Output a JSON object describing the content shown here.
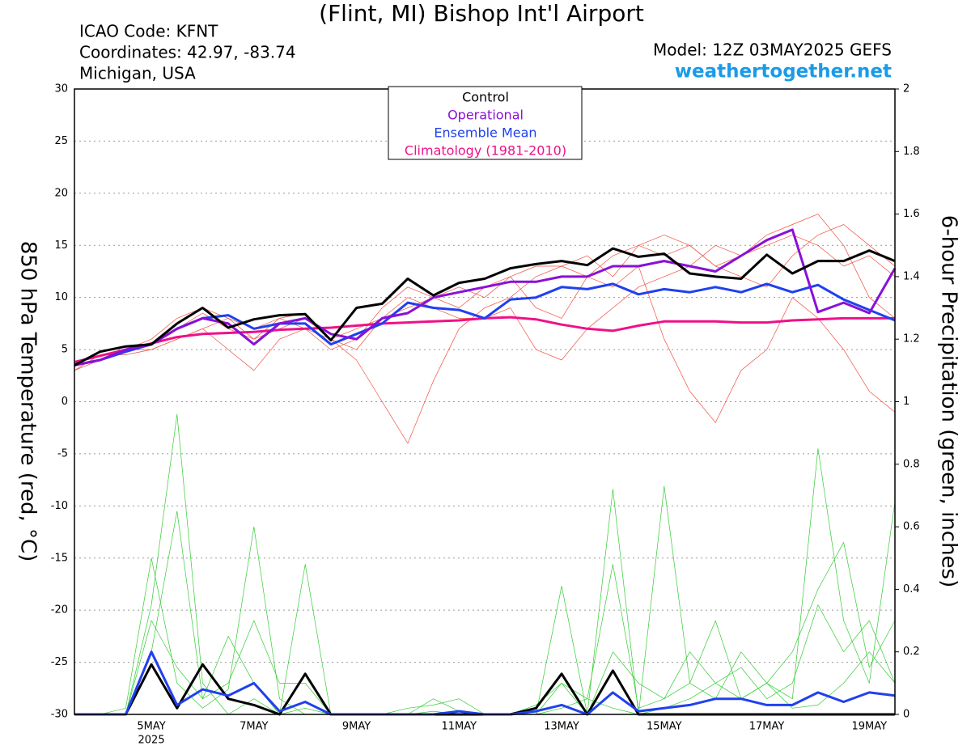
{
  "chart_data": {
    "type": "line",
    "title": "(Flint, MI) Bishop Int'l Airport",
    "info": [
      "ICAO Code: KFNT",
      "Coordinates: 42.97, -83.74",
      "Michigan, USA"
    ],
    "model": "Model: 12Z 03MAY2025 GEFS",
    "site": "weathertogether.net",
    "y_label": "850 hPa Temperature (red, °C)",
    "y2_label": "6-hour Precipitation (green, inches)",
    "categories": [
      null,
      null,
      null,
      "5MAY",
      null,
      null,
      null,
      "7MAY",
      null,
      null,
      null,
      "9MAY",
      null,
      null,
      null,
      "11MAY",
      null,
      null,
      null,
      "13MAY",
      null,
      null,
      null,
      "15MAY",
      null,
      null,
      null,
      "17MAY",
      null,
      null,
      null,
      "19MAY",
      null
    ],
    "year_label": "2025",
    "ylim": [
      -30,
      30
    ],
    "yticks": [
      -30,
      -25,
      -20,
      -15,
      -10,
      -5,
      0,
      5,
      10,
      15,
      20,
      25,
      30
    ],
    "y2lim": [
      0,
      2
    ],
    "y2ticks": [
      0,
      0.2,
      0.4,
      0.6,
      0.8,
      1,
      1.2,
      1.4,
      1.6,
      1.8,
      2
    ],
    "grid": true,
    "series": [
      {
        "color": "#33cc33",
        "axis": "y2",
        "values": [
          0,
          0,
          0,
          0.35,
          0.96,
          0.1,
          0,
          0.05,
          0,
          0.02,
          0,
          0,
          0,
          0,
          0,
          0,
          0,
          0,
          0,
          0.41,
          0,
          0.72,
          0,
          0.02,
          0.05,
          0.1,
          0.05,
          0.1,
          0.02,
          0.03,
          0.1,
          0.2,
          0.1
        ]
      },
      {
        "color": "#33cc33",
        "axis": "y2",
        "values": [
          0,
          0,
          0.02,
          0.5,
          0.1,
          0.02,
          0.08,
          0.6,
          0.05,
          0,
          0,
          0,
          0,
          0,
          0.01,
          0,
          0,
          0,
          0,
          0.02,
          0.05,
          0.02,
          0,
          0.73,
          0.1,
          0.05,
          0.2,
          0.1,
          0.05,
          0.85,
          0.3,
          0.1,
          0.68
        ]
      },
      {
        "color": "#33cc33",
        "axis": "y2",
        "values": [
          0,
          0,
          0,
          0.3,
          0.15,
          0.05,
          0.25,
          0.1,
          0,
          0.48,
          0,
          0,
          0,
          0,
          0.05,
          0.01,
          0,
          0,
          0.03,
          0.1,
          0.05,
          0.48,
          0.02,
          0.05,
          0.1,
          0.3,
          0.05,
          0.1,
          0.2,
          0.4,
          0.55,
          0.15,
          0.3
        ]
      },
      {
        "color": "#33cc33",
        "axis": "y2",
        "values": [
          0,
          0,
          0,
          0.2,
          0.65,
          0.05,
          0.1,
          0.3,
          0.1,
          0.1,
          0,
          0,
          0,
          0.02,
          0.03,
          0.05,
          0,
          0,
          0,
          0.1,
          0,
          0.2,
          0.1,
          0.05,
          0.2,
          0.1,
          0.15,
          0.05,
          0.1,
          0.35,
          0.2,
          0.3,
          0.1
        ]
      },
      {
        "color": "#f05040",
        "values": [
          3,
          4.5,
          5,
          5.5,
          7,
          8.5,
          7,
          6,
          8,
          8.5,
          6,
          5,
          8,
          9,
          10,
          9,
          11,
          12,
          13,
          13,
          14,
          12,
          15,
          14,
          15,
          13,
          14,
          15,
          16,
          15,
          13,
          14,
          12
        ]
      },
      {
        "color": "#f05040",
        "values": [
          3.5,
          4,
          5,
          5,
          6,
          7,
          5,
          3,
          6,
          7,
          5,
          6,
          9,
          11,
          10,
          11,
          10,
          12,
          9,
          8,
          12,
          11,
          13,
          6,
          1,
          -2,
          3,
          5,
          10,
          8,
          5,
          1,
          -1
        ]
      },
      {
        "color": "#f05040",
        "values": [
          3,
          4,
          5,
          6,
          8,
          9,
          8,
          6,
          7,
          8,
          6,
          4,
          0,
          -4,
          2,
          7,
          9,
          10,
          12,
          13,
          12,
          14,
          15,
          16,
          15,
          13,
          12,
          11,
          14,
          16,
          17,
          15,
          13
        ]
      },
      {
        "color": "#f05040",
        "values": [
          3,
          4.5,
          4.5,
          5,
          6,
          7,
          8,
          7,
          8,
          7,
          6,
          7,
          8,
          10,
          9,
          8,
          8,
          9,
          5,
          4,
          7,
          9,
          11,
          12,
          13,
          15,
          14,
          16,
          17,
          18,
          15,
          10,
          8
        ]
      },
      {
        "color": "#000000",
        "axis": "y2",
        "values": [
          0,
          0,
          0,
          0.16,
          0.02,
          0.16,
          0.05,
          0.03,
          0,
          0.13,
          0,
          0,
          0,
          0,
          0,
          0,
          0,
          0,
          0.02,
          0.13,
          0,
          0.14,
          0,
          0,
          0,
          0,
          0,
          0,
          0,
          0,
          0,
          0,
          0
        ]
      },
      {
        "color": "#2040ee",
        "axis": "y2",
        "values": [
          0,
          0,
          0,
          0.2,
          0.03,
          0.08,
          0.06,
          0.1,
          0.01,
          0.04,
          0,
          0,
          0,
          0,
          0,
          0.01,
          0,
          0,
          0.01,
          0.03,
          0,
          0.07,
          0.01,
          0.02,
          0.03,
          0.05,
          0.05,
          0.03,
          0.03,
          0.07,
          0.04,
          0.07,
          0.06
        ]
      },
      {
        "name": "Climatology (1981-2010)",
        "color": "#ee1188",
        "values": [
          3.8,
          4.4,
          5.0,
          5.6,
          6.2,
          6.5,
          6.6,
          6.7,
          6.9,
          7.0,
          7.1,
          7.3,
          7.5,
          7.6,
          7.7,
          7.8,
          8.0,
          8.1,
          7.9,
          7.4,
          7.0,
          6.8,
          7.3,
          7.7,
          7.7,
          7.7,
          7.6,
          7.6,
          7.8,
          7.9,
          8.0,
          8.0,
          8.0
        ]
      },
      {
        "name": "Ensemble Mean",
        "color": "#2040ee",
        "values": [
          3.5,
          4.0,
          4.8,
          5.5,
          7.0,
          8.0,
          8.3,
          7.0,
          7.5,
          7.5,
          5.5,
          6.5,
          7.5,
          9.5,
          9.0,
          8.8,
          8.0,
          9.8,
          10.0,
          11.0,
          10.8,
          11.3,
          10.3,
          10.8,
          10.5,
          11.0,
          10.5,
          11.3,
          10.5,
          11.2,
          9.8,
          8.8,
          7.8
        ]
      },
      {
        "name": "Operational",
        "color": "#8a10d8",
        "values": [
          3.5,
          4.0,
          5.0,
          5.5,
          7.0,
          8.0,
          7.5,
          5.5,
          7.5,
          8.0,
          6.5,
          6.0,
          8.0,
          8.5,
          10.0,
          10.5,
          11.0,
          11.5,
          11.5,
          12.0,
          12.0,
          13.0,
          13.0,
          13.5,
          13.0,
          12.5,
          14.0,
          15.5,
          16.5,
          8.6,
          9.5,
          8.5,
          12.8
        ]
      },
      {
        "name": "Control",
        "color": "#000000",
        "values": [
          3.5,
          4.8,
          5.3,
          5.5,
          7.5,
          9.0,
          7.1,
          7.9,
          8.3,
          8.4,
          5.9,
          9.0,
          9.4,
          11.8,
          10.2,
          11.4,
          11.8,
          12.8,
          13.2,
          13.5,
          13.1,
          14.7,
          13.9,
          14.2,
          12.3,
          12.0,
          11.8,
          14.1,
          12.3,
          13.5,
          13.5,
          14.5,
          13.5
        ]
      }
    ]
  }
}
